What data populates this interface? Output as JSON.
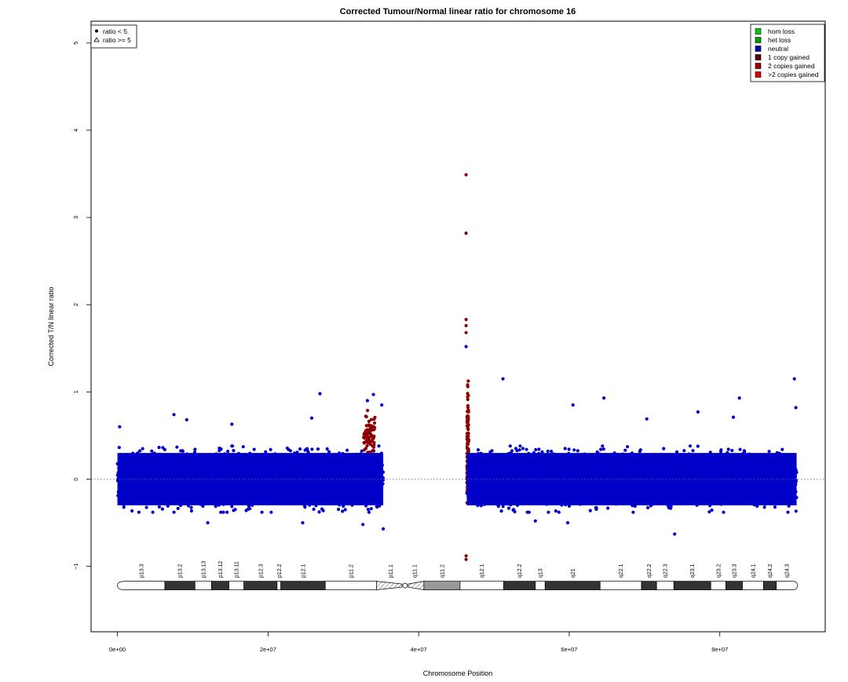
{
  "chart_data": {
    "type": "scatter",
    "title": "Corrected Tumour/Normal linear ratio for chromosome  16",
    "xlabel": "Chromosome Position",
    "ylabel": "Corrected T/N linear ratio",
    "xlim": [
      -3500000,
      94000000
    ],
    "ylim": [
      -1.75,
      5.25
    ],
    "xticks": [
      {
        "value": 0,
        "label": "0e+00"
      },
      {
        "value": 20000000,
        "label": "2e+07"
      },
      {
        "value": 40000000,
        "label": "4e+07"
      },
      {
        "value": 60000000,
        "label": "6e+07"
      },
      {
        "value": 80000000,
        "label": "8e+07"
      }
    ],
    "yticks": [
      {
        "value": -1,
        "label": "−1"
      },
      {
        "value": 0,
        "label": "0"
      },
      {
        "value": 1,
        "label": "1"
      },
      {
        "value": 2,
        "label": "2"
      },
      {
        "value": 3,
        "label": "3"
      },
      {
        "value": 4,
        "label": "4"
      },
      {
        "value": 5,
        "label": "5"
      }
    ],
    "reference_line": {
      "y": 0,
      "style": "dotted"
    },
    "grid": false,
    "legend_shape": {
      "position": "top-left",
      "entries": [
        {
          "symbol": "dot",
          "label": "ratio < 5"
        },
        {
          "symbol": "triangle",
          "label": "ratio >= 5"
        }
      ]
    },
    "legend_status": {
      "position": "top-right",
      "entries": [
        {
          "label": "hom loss",
          "color": "#00d000"
        },
        {
          "label": "het loss",
          "color": "#00a000"
        },
        {
          "label": "neutral",
          "color": "#0000b4"
        },
        {
          "label": "1 copy gained",
          "color": "#5a0000"
        },
        {
          "label": "2 copies gained",
          "color": "#a00000"
        },
        {
          "label": ">2 copies gained",
          "color": "#e00000"
        }
      ]
    },
    "segments": [
      {
        "status": "neutral",
        "color": "#0000c8",
        "x_start": 0,
        "x_end": 35300000,
        "center": 0.0,
        "spread": 0.33,
        "density": 1800
      },
      {
        "status": "1 copy gained",
        "color": "#8b0000",
        "x_start": 32700000,
        "x_end": 34200000,
        "center": 0.5,
        "spread": 0.25,
        "density": 80
      },
      {
        "status": "neutral",
        "color": "#0000c8",
        "x_start": 46400000,
        "x_end": 90200000,
        "center": 0.0,
        "spread": 0.33,
        "density": 2300
      },
      {
        "status": "1 copy gained",
        "color": "#8b0000",
        "x_start": 46400000,
        "x_end": 46650000,
        "center": 0.4,
        "spread": 0.7,
        "density": 120
      }
    ],
    "outliers": [
      {
        "x": 300000,
        "y": 0.6,
        "status": "neutral"
      },
      {
        "x": 7500000,
        "y": 0.74,
        "status": "neutral"
      },
      {
        "x": 9200000,
        "y": 0.68,
        "status": "neutral"
      },
      {
        "x": 15200000,
        "y": 0.63,
        "status": "neutral"
      },
      {
        "x": 26900000,
        "y": 0.98,
        "status": "neutral"
      },
      {
        "x": 25800000,
        "y": 0.7,
        "status": "neutral"
      },
      {
        "x": 33200000,
        "y": 0.9,
        "status": "neutral"
      },
      {
        "x": 34000000,
        "y": 0.97,
        "status": "neutral"
      },
      {
        "x": 35100000,
        "y": 0.85,
        "status": "neutral"
      },
      {
        "x": 12000000,
        "y": -0.5,
        "status": "neutral"
      },
      {
        "x": 24600000,
        "y": -0.5,
        "status": "neutral"
      },
      {
        "x": 32600000,
        "y": -0.52,
        "status": "neutral"
      },
      {
        "x": 35300000,
        "y": -0.57,
        "status": "neutral"
      },
      {
        "x": 46300000,
        "y": 3.49,
        "status": "1 copy gained"
      },
      {
        "x": 46300000,
        "y": 2.82,
        "status": "1 copy gained"
      },
      {
        "x": 46300000,
        "y": 1.83,
        "status": "1 copy gained"
      },
      {
        "x": 46300000,
        "y": 1.76,
        "status": "1 copy gained"
      },
      {
        "x": 46300000,
        "y": 1.68,
        "status": "1 copy gained"
      },
      {
        "x": 46300000,
        "y": 1.52,
        "status": "neutral"
      },
      {
        "x": 46300000,
        "y": -0.88,
        "status": "1 copy gained"
      },
      {
        "x": 46300000,
        "y": -0.92,
        "status": "1 copy gained"
      },
      {
        "x": 51200000,
        "y": 1.15,
        "status": "neutral"
      },
      {
        "x": 60500000,
        "y": 0.85,
        "status": "neutral"
      },
      {
        "x": 64600000,
        "y": 0.93,
        "status": "neutral"
      },
      {
        "x": 70300000,
        "y": 0.69,
        "status": "neutral"
      },
      {
        "x": 77100000,
        "y": 0.77,
        "status": "neutral"
      },
      {
        "x": 82600000,
        "y": 0.93,
        "status": "neutral"
      },
      {
        "x": 81800000,
        "y": 0.71,
        "status": "neutral"
      },
      {
        "x": 89900000,
        "y": 1.15,
        "status": "neutral"
      },
      {
        "x": 90100000,
        "y": 0.82,
        "status": "neutral"
      },
      {
        "x": 74000000,
        "y": -0.63,
        "status": "neutral"
      },
      {
        "x": 55500000,
        "y": -0.48,
        "status": "neutral"
      },
      {
        "x": 59800000,
        "y": -0.5,
        "status": "neutral"
      }
    ],
    "ideogram": {
      "y_center": -1.22,
      "bands": [
        {
          "name": "p13.3",
          "start": 0,
          "end": 6300000,
          "stain": "gneg"
        },
        {
          "name": "p13.2",
          "start": 6300000,
          "end": 10300000,
          "stain": "gpos"
        },
        {
          "name": "p13.13",
          "start": 10300000,
          "end": 12500000,
          "stain": "gneg"
        },
        {
          "name": "p13.12",
          "start": 12500000,
          "end": 14800000,
          "stain": "gpos"
        },
        {
          "name": "p13.11",
          "start": 14800000,
          "end": 16800000,
          "stain": "gneg"
        },
        {
          "name": "p12.3",
          "start": 16800000,
          "end": 21200000,
          "stain": "gpos"
        },
        {
          "name": "p12.2",
          "start": 21200000,
          "end": 21700000,
          "stain": "gneg"
        },
        {
          "name": "p12.1",
          "start": 21700000,
          "end": 27600000,
          "stain": "gpos"
        },
        {
          "name": "p11.2",
          "start": 27600000,
          "end": 34400000,
          "stain": "gneg"
        },
        {
          "name": "p11.1",
          "start": 34400000,
          "end": 38200000,
          "stain": "acen"
        },
        {
          "name": "q11.1",
          "start": 38200000,
          "end": 40700000,
          "stain": "acen"
        },
        {
          "name": "q11.2",
          "start": 40700000,
          "end": 45500000,
          "stain": "gvar"
        },
        {
          "name": "q12.1",
          "start": 45500000,
          "end": 51300000,
          "stain": "gneg"
        },
        {
          "name": "q12.2",
          "start": 51300000,
          "end": 55500000,
          "stain": "gpos"
        },
        {
          "name": "q13",
          "start": 55500000,
          "end": 56800000,
          "stain": "gneg"
        },
        {
          "name": "q21",
          "start": 56800000,
          "end": 64100000,
          "stain": "gpos"
        },
        {
          "name": "q22.1",
          "start": 64100000,
          "end": 69600000,
          "stain": "gneg"
        },
        {
          "name": "q22.2",
          "start": 69600000,
          "end": 71600000,
          "stain": "gpos"
        },
        {
          "name": "q22.3",
          "start": 71600000,
          "end": 73900000,
          "stain": "gneg"
        },
        {
          "name": "q23.1",
          "start": 73900000,
          "end": 78800000,
          "stain": "gpos"
        },
        {
          "name": "q23.2",
          "start": 78800000,
          "end": 80800000,
          "stain": "gneg"
        },
        {
          "name": "q23.3",
          "start": 80800000,
          "end": 83000000,
          "stain": "gpos"
        },
        {
          "name": "q24.1",
          "start": 83000000,
          "end": 85800000,
          "stain": "gneg"
        },
        {
          "name": "q24.2",
          "start": 85800000,
          "end": 87500000,
          "stain": "gpos"
        },
        {
          "name": "q24.3",
          "start": 87500000,
          "end": 90300000,
          "stain": "gneg"
        }
      ]
    }
  }
}
